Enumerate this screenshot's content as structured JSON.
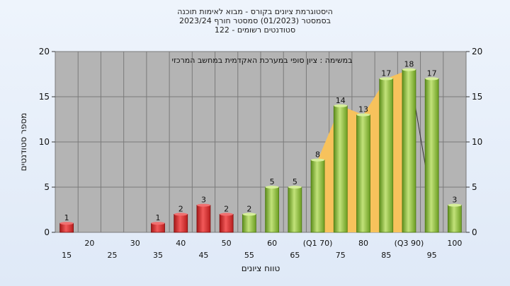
{
  "chart_data": {
    "type": "bar",
    "title_lines": [
      "היסטוגרמת ציונים בקורס - מבוא לאימות תוכנה",
      "בסמסטר  (01/2023)  סמסטר חורף  2023/24",
      "סטודנטים רשומים - 122"
    ],
    "annotation": "במשימה : ציון סופי במערכת האקדמית במחשב המרכזי",
    "ylabel": "מספר סטודנטים",
    "xlabel": "טווח ציונים",
    "ylim": [
      0,
      20
    ],
    "yticks": [
      0,
      5,
      10,
      15,
      20
    ],
    "categories": [
      "15",
      "20",
      "25",
      "30",
      "35",
      "40",
      "45",
      "50",
      "55",
      "60",
      "65",
      "(Q1 70)",
      "75",
      "80",
      "85",
      "(Q3 90)",
      "95",
      "100"
    ],
    "values": [
      1,
      0,
      0,
      0,
      1,
      2,
      3,
      2,
      2,
      5,
      5,
      8,
      14,
      13,
      17,
      18,
      17,
      3
    ],
    "data_labels": [
      "1",
      "",
      "",
      "",
      "1",
      "2",
      "3",
      "2",
      "2",
      "5",
      "5",
      "8",
      "14",
      "13",
      "17",
      "18",
      "17",
      "3"
    ],
    "grid": true,
    "colors": {
      "fail_bar": "#e23a3a",
      "pass_bar": "#8cc63f",
      "interquartile_area": "#f7c25c",
      "plot_bg": "#b4b4b4"
    }
  }
}
